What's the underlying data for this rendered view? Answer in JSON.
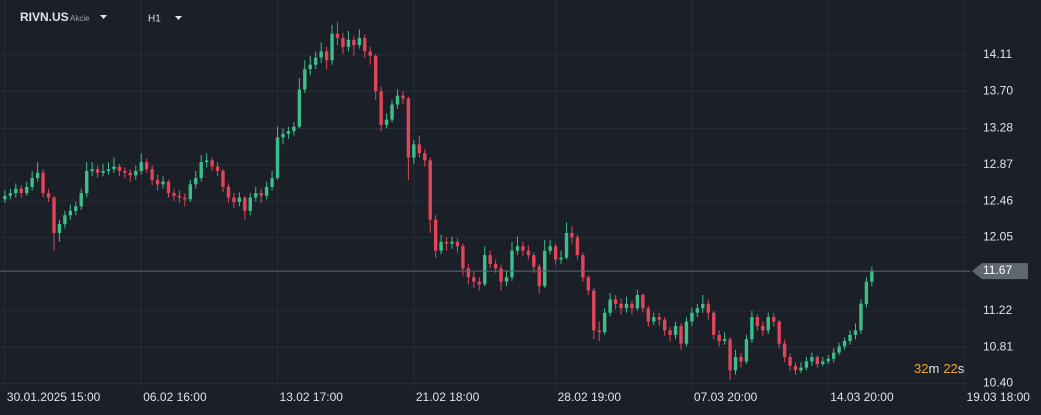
{
  "header": {
    "symbol": "RIVN.US",
    "asset_class": "Akcie",
    "timeframe": "H1"
  },
  "chart_data": {
    "type": "candlestick",
    "up_color": "#3dbd8a",
    "down_color": "#e0455a",
    "grid": true,
    "ylim": [
      10.35,
      14.73
    ],
    "yticks": [
      {
        "value": 10.4,
        "label": "10.40"
      },
      10.81,
      11.22,
      12.05,
      12.46,
      12.87,
      13.28,
      {
        "value": 13.7,
        "label": "13.70"
      },
      14.11
    ],
    "xlim": [
      -0.9,
      177
    ],
    "xticks": [
      {
        "value": 0,
        "label": "30.01.2025 15:00"
      },
      {
        "value": 25,
        "label": "06.02 16:00"
      },
      {
        "value": 50,
        "label": "13.02 17:00"
      },
      {
        "value": 75,
        "label": "21.02 18:00"
      },
      {
        "value": 101,
        "label": "28.02 19:00"
      },
      {
        "value": 126,
        "label": "07.03 20:00"
      },
      {
        "value": 151,
        "label": "14.03 20:00"
      },
      {
        "value": 176,
        "label": "19.03 18:00"
      }
    ],
    "last_price": 11.67,
    "ohlc": [
      [
        12.48,
        12.58,
        12.44,
        12.52
      ],
      [
        12.52,
        12.6,
        12.48,
        12.55
      ],
      [
        12.55,
        12.66,
        12.5,
        12.6
      ],
      [
        12.6,
        12.64,
        12.5,
        12.55
      ],
      [
        12.55,
        12.68,
        12.52,
        12.62
      ],
      [
        12.62,
        12.8,
        12.58,
        12.72
      ],
      [
        12.72,
        12.9,
        12.68,
        12.78
      ],
      [
        12.78,
        12.82,
        12.5,
        12.55
      ],
      [
        12.55,
        12.6,
        12.45,
        12.5
      ],
      [
        12.5,
        12.52,
        11.9,
        12.1
      ],
      [
        12.1,
        12.25,
        12.0,
        12.2
      ],
      [
        12.2,
        12.35,
        12.15,
        12.3
      ],
      [
        12.3,
        12.42,
        12.25,
        12.35
      ],
      [
        12.35,
        12.45,
        12.3,
        12.4
      ],
      [
        12.4,
        12.6,
        12.36,
        12.55
      ],
      [
        12.55,
        12.9,
        12.5,
        12.8
      ],
      [
        12.8,
        12.9,
        12.74,
        12.82
      ],
      [
        12.82,
        12.86,
        12.72,
        12.78
      ],
      [
        12.78,
        12.88,
        12.74,
        12.8
      ],
      [
        12.8,
        12.9,
        12.76,
        12.82
      ],
      [
        12.82,
        12.95,
        12.78,
        12.85
      ],
      [
        12.85,
        12.88,
        12.74,
        12.8
      ],
      [
        12.8,
        12.84,
        12.72,
        12.78
      ],
      [
        12.78,
        12.82,
        12.68,
        12.75
      ],
      [
        12.75,
        12.86,
        12.7,
        12.8
      ],
      [
        12.8,
        13.0,
        12.76,
        12.9
      ],
      [
        12.9,
        12.94,
        12.78,
        12.82
      ],
      [
        12.82,
        12.86,
        12.64,
        12.7
      ],
      [
        12.7,
        12.76,
        12.58,
        12.65
      ],
      [
        12.65,
        12.74,
        12.6,
        12.68
      ],
      [
        12.68,
        12.7,
        12.5,
        12.55
      ],
      [
        12.55,
        12.6,
        12.46,
        12.52
      ],
      [
        12.52,
        12.58,
        12.44,
        12.5
      ],
      [
        12.5,
        12.55,
        12.4,
        12.48
      ],
      [
        12.48,
        12.7,
        12.45,
        12.65
      ],
      [
        12.65,
        12.8,
        12.6,
        12.72
      ],
      [
        12.72,
        12.98,
        12.68,
        12.9
      ],
      [
        12.9,
        13.0,
        12.84,
        12.92
      ],
      [
        12.92,
        12.95,
        12.8,
        12.85
      ],
      [
        12.85,
        12.9,
        12.74,
        12.8
      ],
      [
        12.8,
        12.82,
        12.56,
        12.62
      ],
      [
        12.62,
        12.66,
        12.44,
        12.5
      ],
      [
        12.5,
        12.55,
        12.38,
        12.45
      ],
      [
        12.45,
        12.56,
        12.4,
        12.5
      ],
      [
        12.5,
        12.52,
        12.25,
        12.35
      ],
      [
        12.35,
        12.55,
        12.3,
        12.5
      ],
      [
        12.5,
        12.62,
        12.46,
        12.55
      ],
      [
        12.55,
        12.6,
        12.44,
        12.52
      ],
      [
        12.52,
        12.68,
        12.48,
        12.62
      ],
      [
        12.62,
        12.8,
        12.58,
        12.72
      ],
      [
        12.72,
        13.3,
        12.7,
        13.18
      ],
      [
        13.18,
        13.28,
        13.1,
        13.22
      ],
      [
        13.22,
        13.3,
        13.16,
        13.25
      ],
      [
        13.25,
        13.35,
        13.2,
        13.3
      ],
      [
        13.3,
        13.85,
        13.28,
        13.72
      ],
      [
        13.72,
        14.05,
        13.68,
        13.95
      ],
      [
        13.95,
        14.1,
        13.88,
        14.0
      ],
      [
        14.0,
        14.15,
        13.95,
        14.08
      ],
      [
        14.08,
        14.25,
        14.02,
        14.15
      ],
      [
        14.15,
        14.2,
        13.95,
        14.05
      ],
      [
        14.05,
        14.45,
        14.0,
        14.35
      ],
      [
        14.35,
        14.48,
        14.22,
        14.3
      ],
      [
        14.3,
        14.36,
        14.12,
        14.2
      ],
      [
        14.2,
        14.38,
        14.15,
        14.28
      ],
      [
        14.28,
        14.32,
        14.1,
        14.22
      ],
      [
        14.22,
        14.4,
        14.18,
        14.3
      ],
      [
        14.3,
        14.34,
        14.08,
        14.15
      ],
      [
        14.15,
        14.2,
        14.0,
        14.1
      ],
      [
        14.1,
        14.12,
        13.6,
        13.7
      ],
      [
        13.7,
        13.75,
        13.25,
        13.32
      ],
      [
        13.32,
        13.45,
        13.28,
        13.38
      ],
      [
        13.38,
        13.6,
        13.35,
        13.55
      ],
      [
        13.55,
        13.72,
        13.5,
        13.65
      ],
      [
        13.65,
        13.7,
        13.55,
        13.62
      ],
      [
        13.62,
        13.64,
        12.7,
        12.95
      ],
      [
        12.95,
        13.15,
        12.88,
        13.1
      ],
      [
        13.1,
        13.2,
        12.95,
        13.0
      ],
      [
        13.0,
        13.05,
        12.85,
        12.92
      ],
      [
        12.92,
        12.95,
        12.1,
        12.25
      ],
      [
        12.25,
        12.3,
        11.82,
        11.9
      ],
      [
        11.9,
        12.08,
        11.86,
        12.0
      ],
      [
        12.0,
        12.05,
        11.9,
        11.98
      ],
      [
        11.98,
        12.06,
        11.92,
        12.0
      ],
      [
        12.0,
        12.04,
        11.88,
        11.95
      ],
      [
        11.95,
        11.98,
        11.62,
        11.7
      ],
      [
        11.7,
        11.75,
        11.52,
        11.6
      ],
      [
        11.6,
        11.66,
        11.48,
        11.55
      ],
      [
        11.55,
        11.6,
        11.45,
        11.52
      ],
      [
        11.52,
        11.95,
        11.5,
        11.85
      ],
      [
        11.85,
        11.9,
        11.7,
        11.75
      ],
      [
        11.75,
        11.8,
        11.65,
        11.7
      ],
      [
        11.7,
        11.74,
        11.45,
        11.55
      ],
      [
        11.55,
        11.68,
        11.5,
        11.6
      ],
      [
        11.6,
        12.0,
        11.56,
        11.9
      ],
      [
        11.9,
        12.06,
        11.85,
        11.95
      ],
      [
        11.95,
        12.0,
        11.84,
        11.9
      ],
      [
        11.9,
        11.96,
        11.8,
        11.85
      ],
      [
        11.85,
        11.88,
        11.65,
        11.72
      ],
      [
        11.72,
        11.75,
        11.42,
        11.5
      ],
      [
        11.5,
        12.02,
        11.48,
        11.9
      ],
      [
        11.9,
        12.02,
        11.86,
        11.95
      ],
      [
        11.95,
        11.98,
        11.74,
        11.8
      ],
      [
        11.8,
        11.9,
        11.75,
        11.82
      ],
      [
        11.82,
        12.22,
        11.8,
        12.1
      ],
      [
        12.1,
        12.18,
        11.98,
        12.05
      ],
      [
        12.05,
        12.08,
        11.8,
        11.85
      ],
      [
        11.85,
        11.88,
        11.55,
        11.6
      ],
      [
        11.6,
        11.62,
        11.4,
        11.45
      ],
      [
        11.45,
        11.48,
        10.9,
        11.0
      ],
      [
        11.0,
        11.1,
        10.88,
        10.98
      ],
      [
        10.98,
        11.25,
        10.95,
        11.2
      ],
      [
        11.2,
        11.42,
        11.16,
        11.35
      ],
      [
        11.35,
        11.4,
        11.24,
        11.3
      ],
      [
        11.3,
        11.36,
        11.18,
        11.25
      ],
      [
        11.25,
        11.38,
        11.2,
        11.3
      ],
      [
        11.3,
        11.34,
        11.18,
        11.25
      ],
      [
        11.25,
        11.46,
        11.22,
        11.4
      ],
      [
        11.4,
        11.42,
        11.2,
        11.25
      ],
      [
        11.25,
        11.28,
        11.04,
        11.1
      ],
      [
        11.1,
        11.2,
        11.06,
        11.15
      ],
      [
        11.15,
        11.2,
        11.05,
        11.12
      ],
      [
        11.12,
        11.15,
        10.94,
        11.0
      ],
      [
        11.0,
        11.04,
        10.88,
        10.95
      ],
      [
        10.95,
        11.1,
        10.9,
        11.05
      ],
      [
        11.05,
        11.08,
        10.78,
        10.85
      ],
      [
        10.85,
        11.15,
        10.82,
        11.1
      ],
      [
        11.1,
        11.26,
        11.05,
        11.2
      ],
      [
        11.2,
        11.3,
        11.15,
        11.25
      ],
      [
        11.25,
        11.4,
        11.2,
        11.3
      ],
      [
        11.3,
        11.35,
        11.12,
        11.2
      ],
      [
        11.2,
        11.22,
        10.9,
        10.95
      ],
      [
        10.95,
        11.0,
        10.82,
        10.88
      ],
      [
        10.88,
        10.98,
        10.84,
        10.9
      ],
      [
        10.9,
        10.92,
        10.44,
        10.55
      ],
      [
        10.55,
        10.78,
        10.5,
        10.7
      ],
      [
        10.7,
        10.74,
        10.58,
        10.65
      ],
      [
        10.65,
        10.95,
        10.62,
        10.9
      ],
      [
        10.9,
        11.22,
        10.86,
        11.15
      ],
      [
        11.15,
        11.18,
        11.0,
        11.05
      ],
      [
        11.05,
        11.1,
        10.94,
        11.0
      ],
      [
        11.0,
        11.2,
        10.96,
        11.15
      ],
      [
        11.15,
        11.2,
        11.04,
        11.1
      ],
      [
        11.1,
        11.12,
        10.8,
        10.85
      ],
      [
        10.85,
        10.9,
        10.64,
        10.7
      ],
      [
        10.7,
        10.74,
        10.54,
        10.6
      ],
      [
        10.6,
        10.64,
        10.5,
        10.55
      ],
      [
        10.55,
        10.64,
        10.52,
        10.58
      ],
      [
        10.58,
        10.7,
        10.55,
        10.65
      ],
      [
        10.65,
        10.75,
        10.6,
        10.7
      ],
      [
        10.7,
        10.72,
        10.58,
        10.62
      ],
      [
        10.62,
        10.7,
        10.6,
        10.65
      ],
      [
        10.65,
        10.72,
        10.62,
        10.68
      ],
      [
        10.68,
        10.8,
        10.64,
        10.75
      ],
      [
        10.75,
        10.86,
        10.72,
        10.82
      ],
      [
        10.82,
        10.92,
        10.78,
        10.88
      ],
      [
        10.88,
        11.0,
        10.84,
        10.95
      ],
      [
        10.95,
        11.08,
        10.9,
        11.0
      ],
      [
        11.0,
        11.35,
        10.96,
        11.3
      ],
      [
        11.3,
        11.6,
        11.26,
        11.55
      ],
      [
        11.55,
        11.72,
        11.5,
        11.67
      ]
    ]
  },
  "countdown": {
    "minutes": 32,
    "minutes_unit": "m",
    "seconds": 22,
    "seconds_unit": "s"
  }
}
